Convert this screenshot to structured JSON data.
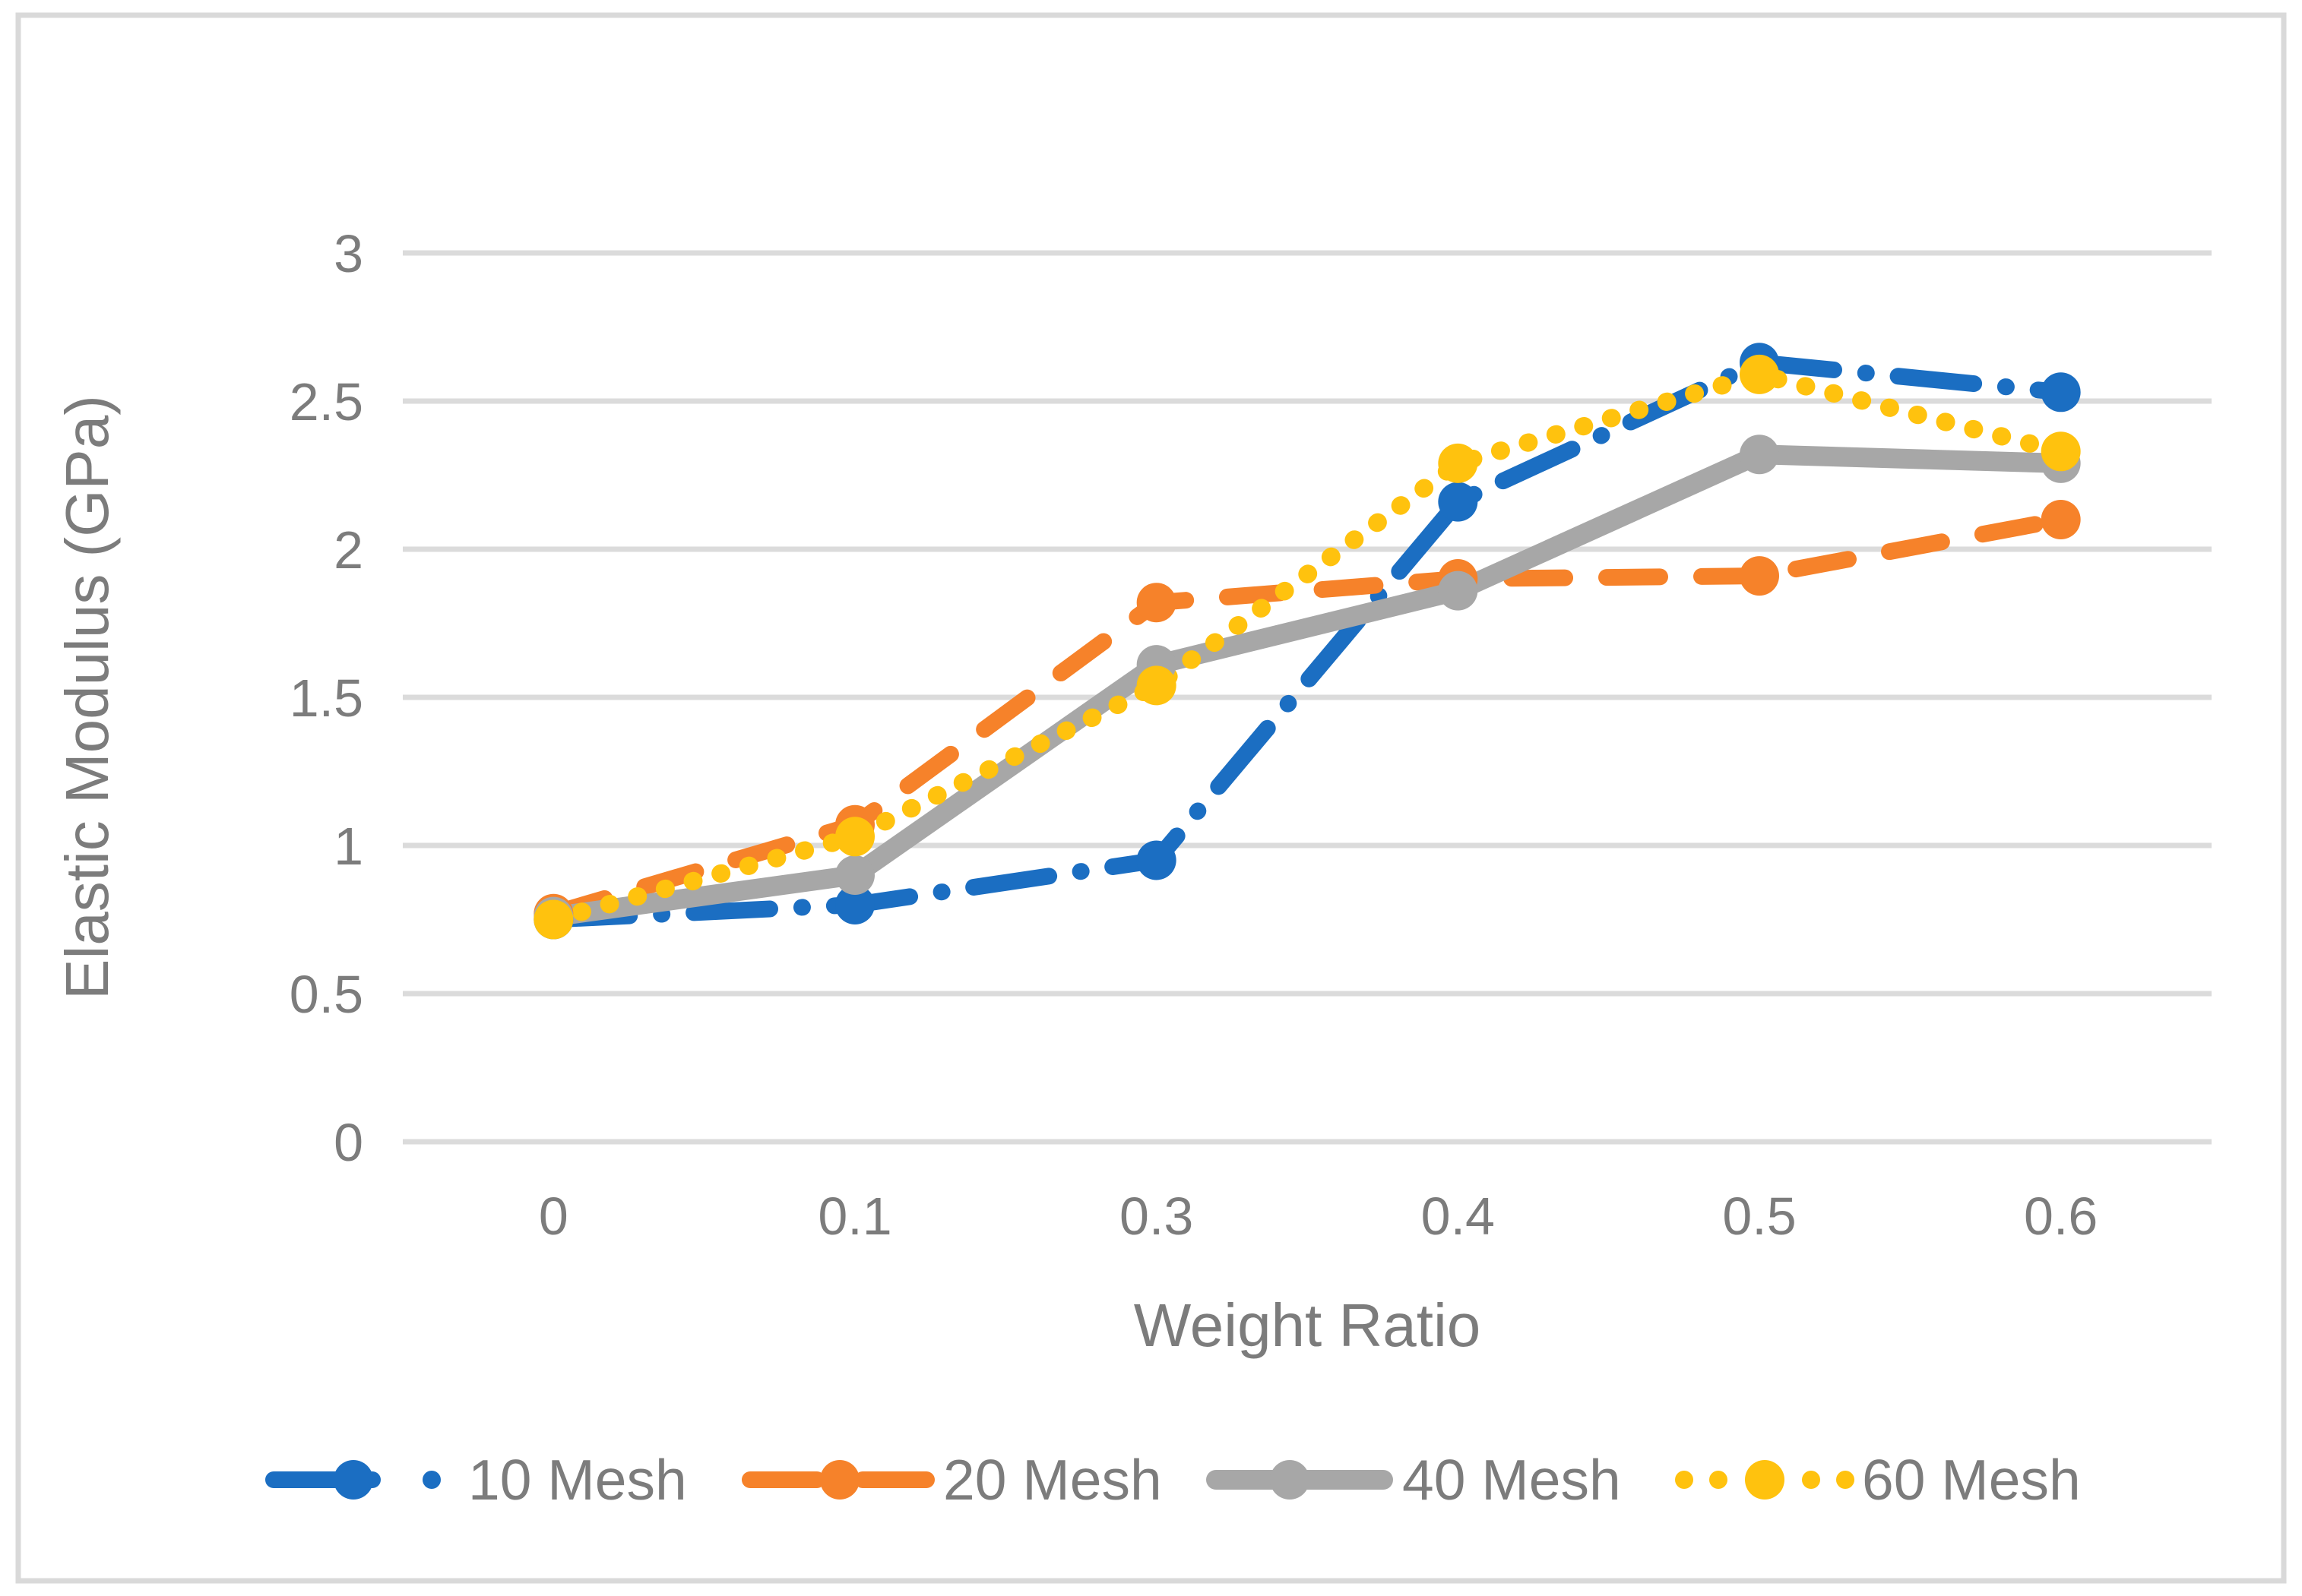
{
  "figure": {
    "background": "#FFFFFF",
    "frame_color": "#D9D9D9",
    "grid_color": "#DBDBDB",
    "text_color": "#7C7C7C"
  },
  "chart_data": {
    "type": "line",
    "title": "",
    "xlabel": "Weight Ratio",
    "ylabel": "Elastic Modulus (GPa)",
    "categories": [
      "0",
      "0.1",
      "0.3",
      "0.4",
      "0.5",
      "0.6"
    ],
    "y_ticks": [
      {
        "value": 0,
        "label": "0"
      },
      {
        "value": 0.5,
        "label": "0.5"
      },
      {
        "value": 1,
        "label": "1"
      },
      {
        "value": 1.5,
        "label": "1.5"
      },
      {
        "value": 2,
        "label": "2"
      },
      {
        "value": 2.5,
        "label": "2.5"
      },
      {
        "value": 3,
        "label": "3"
      }
    ],
    "ylim": [
      0,
      3
    ],
    "grid": "horizontal",
    "legend_position": "bottom",
    "series": [
      {
        "name": "10 Mesh",
        "color": "#1B6EC2",
        "line_style": "long-dash-dot",
        "marker": "circle",
        "values": [
          0.75,
          0.8,
          0.95,
          2.16,
          2.63,
          2.53
        ]
      },
      {
        "name": "20 Mesh",
        "color": "#F6822A",
        "line_style": "dash",
        "marker": "circle",
        "values": [
          0.77,
          1.07,
          1.82,
          1.9,
          1.91,
          2.1
        ]
      },
      {
        "name": "40 Mesh",
        "color": "#A7A7A7",
        "line_style": "solid",
        "marker": "circle",
        "values": [
          0.76,
          0.9,
          1.61,
          1.86,
          2.32,
          2.29
        ]
      },
      {
        "name": "60 Mesh",
        "color": "#FFC20E",
        "line_style": "dot",
        "marker": "circle",
        "values": [
          0.75,
          1.03,
          1.54,
          2.29,
          2.59,
          2.33
        ]
      }
    ]
  }
}
